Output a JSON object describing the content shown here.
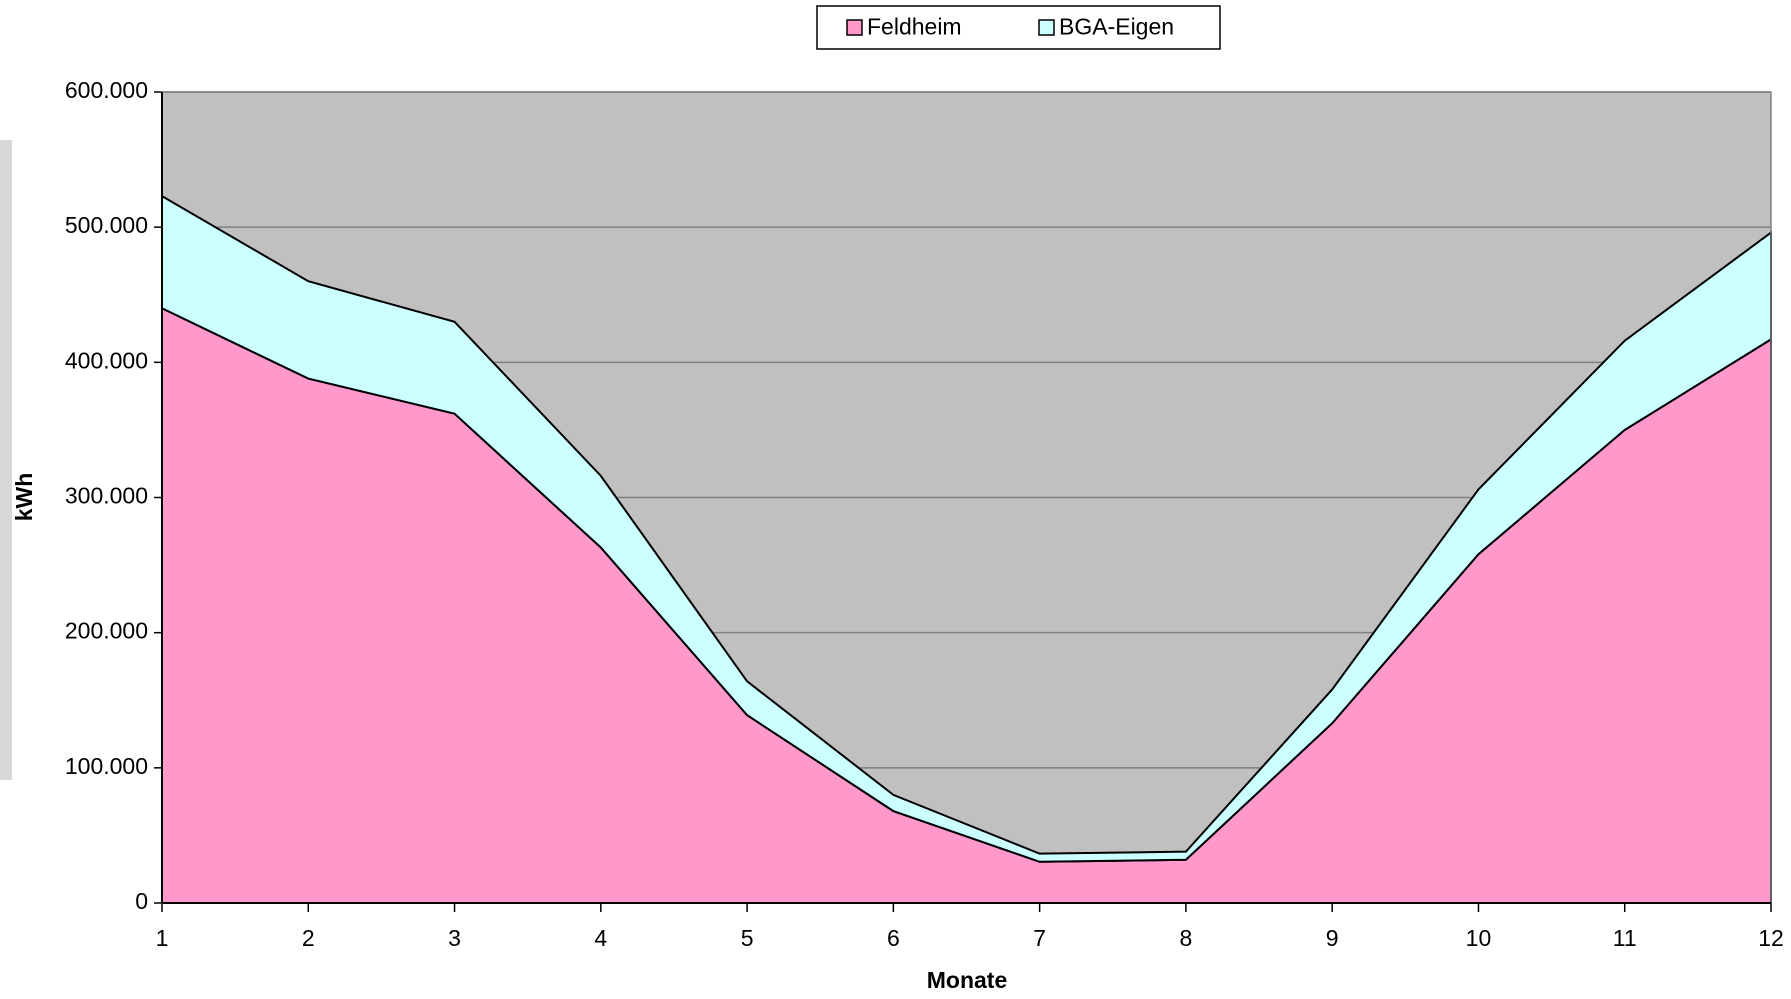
{
  "chart_data": {
    "type": "area",
    "stacked": true,
    "x_label": "Monate",
    "y_label": "kWh",
    "x": [
      1,
      2,
      3,
      4,
      5,
      6,
      7,
      8,
      9,
      10,
      11,
      12
    ],
    "xlim": [
      1,
      12
    ],
    "xticks": [
      1,
      2,
      3,
      4,
      5,
      6,
      7,
      8,
      9,
      10,
      11,
      12
    ],
    "ylim": [
      0,
      600000
    ],
    "yticks": [
      0,
      {
        "value": 100000,
        "label": "100.000"
      },
      {
        "value": 200000,
        "label": "200.000"
      },
      {
        "value": 300000,
        "label": "300.000"
      },
      {
        "value": 400000,
        "label": "400.000"
      },
      {
        "value": 500000,
        "label": "500.000"
      },
      {
        "value": 600000,
        "label": "600.000"
      }
    ],
    "grid": true,
    "legend": "top",
    "plot_background": "#c0c0c0",
    "series": [
      {
        "name": "Feldheim",
        "color": "#ff99cc",
        "values": [
          440000,
          388000,
          362000,
          263000,
          139000,
          68000,
          30500,
          32000,
          133000,
          258000,
          350000,
          417000
        ]
      },
      {
        "name": "BGA-Eigen",
        "color": "#ccffff",
        "values": [
          83000,
          72000,
          68000,
          53000,
          25000,
          12000,
          6000,
          6000,
          25000,
          48000,
          66000,
          79000
        ]
      }
    ]
  }
}
